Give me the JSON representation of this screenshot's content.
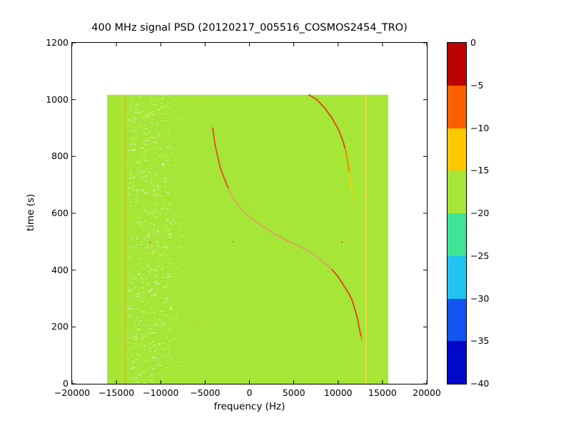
{
  "chart_data": {
    "type": "heatmap",
    "title": "400 MHz signal PSD (20120217_005516_COSMOS2454_TRO)",
    "xlabel": "frequency (Hz)",
    "ylabel": "time (s)",
    "xlim": [
      -20000,
      20000
    ],
    "ylim": [
      0,
      1200
    ],
    "x_ticks": [
      -20000,
      -15000,
      -10000,
      -5000,
      0,
      5000,
      10000,
      15000,
      20000
    ],
    "y_ticks": [
      0,
      200,
      400,
      600,
      800,
      1000,
      1200
    ],
    "grid": false,
    "legend": "none",
    "colorbar": {
      "position": "right",
      "range_db": [
        -40,
        0
      ],
      "tick_labels": [
        0,
        -5,
        -10,
        -15,
        -20,
        -25,
        -30,
        -35,
        -40
      ],
      "colors_top_to_bottom": [
        "#bd0000",
        "#fb6000",
        "#fec800",
        "#a5e636",
        "#3fe596",
        "#21c3f0",
        "#1254f0",
        "#0009c8"
      ]
    },
    "data_extent": {
      "freq_hz": [
        -16050,
        15650
      ],
      "time_s": [
        0,
        1017
      ]
    },
    "background": {
      "level_band_db": "-15 to -20",
      "color": "#a5e636"
    },
    "doppler_track_main": {
      "description": "S-shaped satellite Doppler track",
      "segments": [
        {
          "color": "#f04626",
          "width": 1.8,
          "dash": "2.5,1",
          "points": [
            [
              -4145,
              900
            ],
            [
              -3900,
              845
            ],
            [
              -3590,
              800
            ],
            [
              -3280,
              760
            ],
            [
              -2940,
              731
            ],
            [
              -2400,
              688
            ]
          ]
        },
        {
          "color": "#ee8e72",
          "width": 1.5,
          "dash": "1.8,1.4",
          "points": [
            [
              -2400,
              688
            ],
            [
              -1810,
              650
            ],
            [
              -900,
              615
            ],
            [
              100,
              585
            ],
            [
              1300,
              557
            ],
            [
              2700,
              530
            ],
            [
              4200,
              505
            ],
            [
              5900,
              480
            ],
            [
              7300,
              455
            ],
            [
              8300,
              430
            ],
            [
              9300,
              402
            ]
          ]
        },
        {
          "color": "#e93a20",
          "width": 1.8,
          "dash": "2.5,1",
          "points": [
            [
              9300,
              402
            ],
            [
              9940,
              379
            ],
            [
              10500,
              352
            ],
            [
              11150,
              321
            ],
            [
              11550,
              296
            ],
            [
              11870,
              264
            ],
            [
              12190,
              229
            ],
            [
              12350,
              201
            ],
            [
              12510,
              178
            ],
            [
              12600,
              165
            ]
          ]
        },
        {
          "color": "#ff9100",
          "width": 1.8,
          "dash": "",
          "points": [
            [
              12600,
              165
            ],
            [
              12650,
              154
            ]
          ]
        }
      ],
      "tip_dots": [
        {
          "freq": 12680,
          "time": 148,
          "color": "#ffd000"
        }
      ]
    },
    "doppler_track_alias": {
      "description": "aliased continuation of Doppler track, upper right",
      "segments": [
        {
          "color": "#e93c20",
          "width": 1.8,
          "dash": "2.5,1",
          "points": [
            [
              6720,
              1017
            ],
            [
              7600,
              1000
            ],
            [
              8500,
              970
            ],
            [
              9300,
              935
            ],
            [
              10000,
              897
            ],
            [
              10500,
              858
            ],
            [
              10800,
              826
            ]
          ]
        },
        {
          "color": "#ff7d00",
          "width": 1.8,
          "dash": "2.5,1",
          "points": [
            [
              10800,
              826
            ],
            [
              11050,
              786
            ],
            [
              11250,
              745
            ]
          ]
        },
        {
          "color": "#ffd000",
          "width": 1.8,
          "dash": "2.2,1.6",
          "points": [
            [
              11250,
              745
            ],
            [
              11420,
              710
            ],
            [
              11530,
              685
            ],
            [
              11580,
              670
            ]
          ]
        }
      ],
      "tip_dots": [
        {
          "freq": 11610,
          "time": 652,
          "color": "#ffd000"
        },
        {
          "freq": 11625,
          "time": 635,
          "color": "#ffd000"
        }
      ]
    },
    "vertical_stripes": [
      {
        "freq": -14850,
        "style": "dotted",
        "color": "#ffaa33",
        "width": 1.2,
        "opacity": 0.8
      },
      {
        "freq": -14000,
        "style": "solid",
        "color": "#ffb014",
        "width": 1.6,
        "opacity": 1.0
      },
      {
        "freq": -4900,
        "style": "dotted",
        "color": "#ffd34d",
        "width": 1.0,
        "opacity": 0.6
      },
      {
        "freq": 4870,
        "style": "dotted",
        "color": "#ffd34d",
        "width": 1.0,
        "opacity": 0.45
      },
      {
        "freq": 9700,
        "style": "dotted",
        "color": "#ffd34d",
        "width": 1.0,
        "opacity": 0.45
      },
      {
        "freq": 12750,
        "style": "dotted",
        "color": "#ffd34d",
        "width": 1.0,
        "opacity": 0.6
      },
      {
        "freq": 13150,
        "style": "solid",
        "color": "#ffd34d",
        "width": 1.6,
        "opacity": 0.95
      },
      {
        "freq": 14050,
        "style": "dotted",
        "color": "#ffd34d",
        "width": 1.0,
        "opacity": 0.5
      },
      {
        "freq": 15050,
        "style": "dotted",
        "color": "#ffd34d",
        "width": 1.0,
        "opacity": 0.55
      }
    ],
    "speckle_bands": [
      {
        "freq_range": [
          -13800,
          -9000
        ],
        "count": 700,
        "color": "#ffffff",
        "opacity_range": [
          0.25,
          0.65
        ]
      },
      {
        "freq_range": [
          -9000,
          -7500
        ],
        "count": 130,
        "color": "#ffffff",
        "opacity_range": [
          0.12,
          0.35
        ]
      }
    ],
    "specks": [
      {
        "freq": -11200,
        "time": 497,
        "color": "#ee4422"
      },
      {
        "freq": -8100,
        "time": 500,
        "color": "#ffaa33"
      },
      {
        "freq": -1800,
        "time": 500,
        "color": "#ee4422"
      },
      {
        "freq": 4230,
        "time": 502,
        "color": "#ff9933"
      },
      {
        "freq": 10450,
        "time": 498,
        "color": "#ee4422"
      },
      {
        "freq": -6200,
        "time": 210,
        "color": "#ffaa33"
      },
      {
        "freq": -15400,
        "time": 640,
        "color": "#ffaa33"
      },
      {
        "freq": 2500,
        "time": 720,
        "color": "#ffcc55"
      }
    ]
  }
}
